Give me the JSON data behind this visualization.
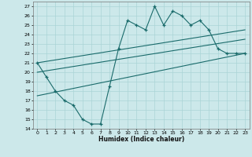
{
  "xlabel": "Humidex (Indice chaleur)",
  "background_color": "#cce8ea",
  "grid_color": "#aad4d6",
  "line_color": "#1a6b6b",
  "xlim": [
    -0.5,
    23.5
  ],
  "ylim": [
    14,
    27.5
  ],
  "xticks": [
    0,
    1,
    2,
    3,
    4,
    5,
    6,
    7,
    8,
    9,
    10,
    11,
    12,
    13,
    14,
    15,
    16,
    17,
    18,
    19,
    20,
    21,
    22,
    23
  ],
  "yticks": [
    14,
    15,
    16,
    17,
    18,
    19,
    20,
    21,
    22,
    23,
    24,
    25,
    26,
    27
  ],
  "main_x": [
    0,
    1,
    2,
    3,
    4,
    5,
    6,
    7,
    8,
    9,
    10,
    11,
    12,
    13,
    14,
    15,
    16,
    17,
    18,
    19,
    20,
    21,
    22,
    23
  ],
  "main_y": [
    21.0,
    19.5,
    18.0,
    17.0,
    16.5,
    15.0,
    14.5,
    14.5,
    18.5,
    22.5,
    25.5,
    25.0,
    24.5,
    27.0,
    25.0,
    26.5,
    26.0,
    25.0,
    25.5,
    24.5,
    22.5,
    22.0,
    22.0,
    22.0
  ],
  "line1_x": [
    0,
    23
  ],
  "line1_y": [
    21.0,
    24.5
  ],
  "line2_x": [
    0,
    23
  ],
  "line2_y": [
    20.0,
    23.5
  ],
  "line3_x": [
    0,
    23
  ],
  "line3_y": [
    17.5,
    22.0
  ]
}
